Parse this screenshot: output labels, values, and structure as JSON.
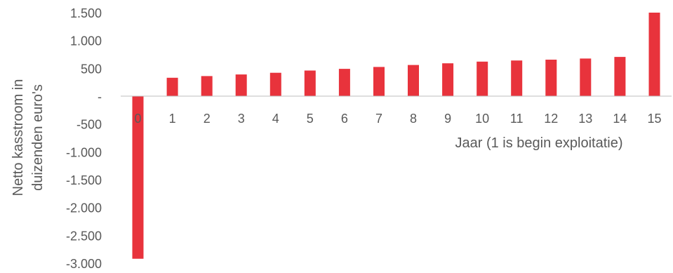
{
  "chart_data": {
    "type": "bar",
    "title": "",
    "xlabel": "Jaar (1 is begin exploitatie)",
    "ylabel_lines": [
      "Netto kasstroom in",
      "duizenden euro's"
    ],
    "categories": [
      "0",
      "1",
      "2",
      "3",
      "4",
      "5",
      "6",
      "7",
      "8",
      "9",
      "10",
      "11",
      "12",
      "13",
      "14",
      "15"
    ],
    "values": [
      -2920,
      330,
      360,
      390,
      420,
      460,
      490,
      525,
      560,
      590,
      620,
      640,
      655,
      675,
      705,
      1500
    ],
    "ylim": [
      -3000,
      1500
    ],
    "yticks": [
      1500,
      1000,
      500,
      0,
      -500,
      -1000,
      -1500,
      -2000,
      -2500,
      -3000
    ],
    "ytick_labels": [
      "1.500",
      "1.000",
      "500",
      "-",
      "-500",
      "-1.000",
      "-1.500",
      "-2.000",
      "-2.500",
      "-3.000"
    ],
    "bar_color": "#E8333C",
    "axis_color": "#BFBFBF",
    "grid": false,
    "legend": "none"
  }
}
